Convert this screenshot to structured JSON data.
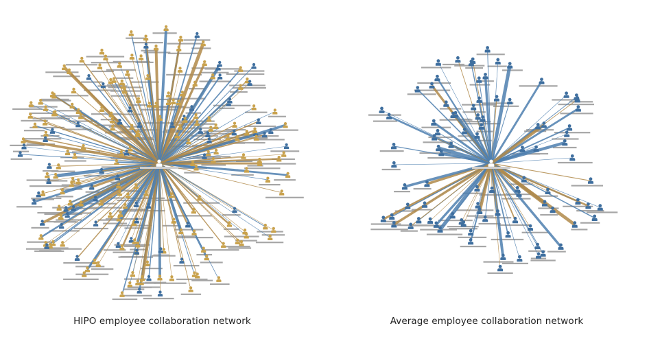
{
  "colors": {
    "blue": "#4d7faf",
    "gold": "#b08a4a",
    "label_bar": "#a6a6a6",
    "center_bar": "#cfcfcf",
    "person_blue": "#3f6f9f",
    "person_gold": "#c9a24d"
  },
  "icons": {
    "node": "person-icon",
    "center": "person-icon"
  },
  "networks": [
    {
      "caption": "HIPO employee collaboration network",
      "node_count": 230,
      "node_colors": "mixed-gold-and-blue",
      "edge_colors": [
        "blue",
        "gold"
      ]
    },
    {
      "caption": "Average employee collaboration network",
      "node_count": 92,
      "node_colors": "blue",
      "edge_colors": [
        "blue",
        "gold"
      ]
    }
  ]
}
